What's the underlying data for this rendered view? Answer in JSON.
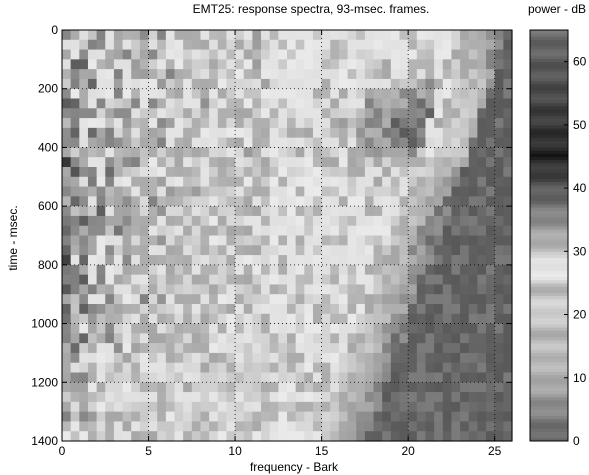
{
  "chart_data": {
    "type": "heatmap",
    "title": "EMT25: response spectra, 93-msec. frames.",
    "xlabel": "frequency - Bark",
    "ylabel": "time - msec.",
    "xlim": [
      0,
      26
    ],
    "ylim": [
      1400,
      0
    ],
    "x_ticks": [
      0,
      5,
      10,
      15,
      20,
      25
    ],
    "y_ticks": [
      0,
      200,
      400,
      600,
      800,
      1000,
      1200,
      1400
    ],
    "grid": true,
    "grid_style": "dotted",
    "colormap": "grayscale-striped",
    "x_cells": 52,
    "y_cells": 42,
    "description_points": [
      {
        "frequency": 5,
        "time": 0,
        "power_db": 50
      },
      {
        "frequency": 25,
        "time": 0,
        "power_db": 42
      },
      {
        "frequency": 20,
        "time": 300,
        "power_db": 40
      },
      {
        "frequency": 3,
        "time": 500,
        "power_db": 40
      },
      {
        "frequency": 10,
        "time": 1200,
        "power_db": 25
      },
      {
        "frequency": 16,
        "time": 1000,
        "power_db": 10
      },
      {
        "frequency": 23,
        "time": 1200,
        "power_db": 62
      }
    ],
    "colorbar": {
      "title": "power - dB",
      "range": [
        0,
        65
      ],
      "ticks": [
        0,
        10,
        20,
        30,
        40,
        50,
        60
      ]
    }
  }
}
